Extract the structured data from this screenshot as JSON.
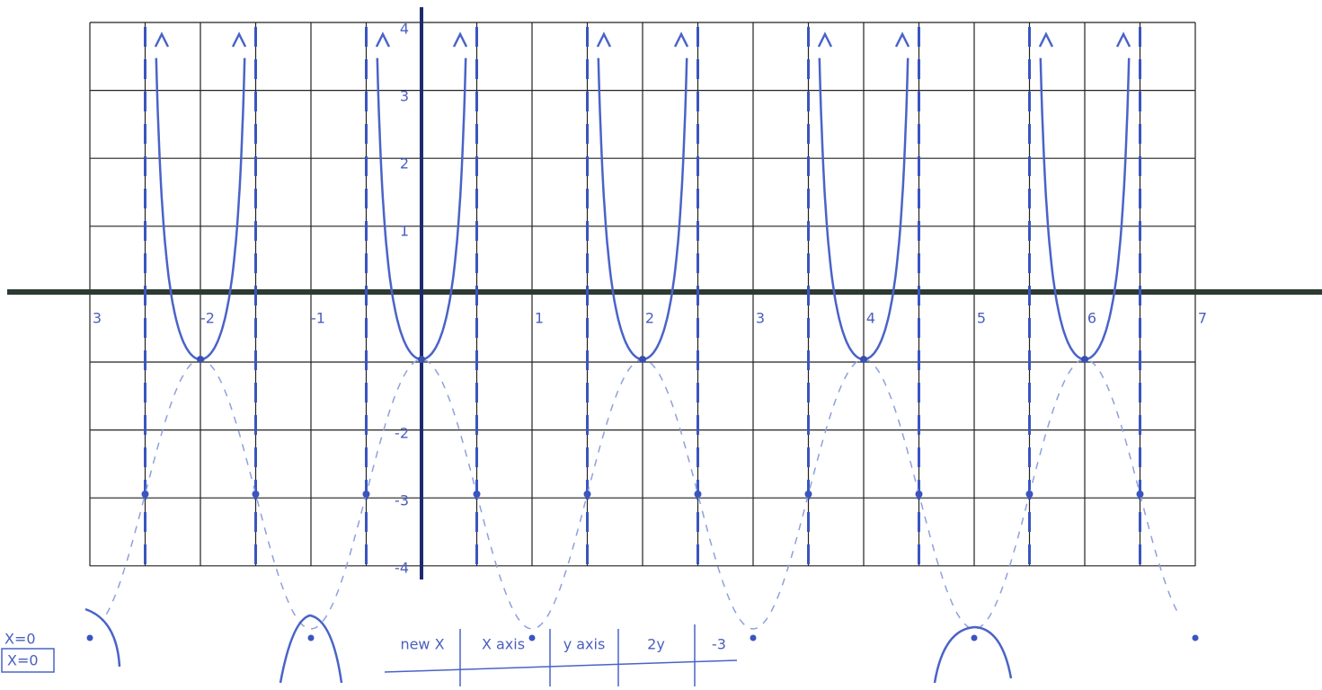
{
  "graph": {
    "x_labels": [
      "3",
      "-2",
      "-1",
      "1",
      "2",
      "3",
      "4",
      "5",
      "6",
      "7"
    ],
    "y_labels": [
      "4",
      "3",
      "2",
      "1",
      "-2",
      "-3",
      "-4"
    ],
    "notes": [
      "X=0",
      "X=0"
    ],
    "table_headers": [
      "new X",
      "X axis",
      "y axis",
      "2y",
      "-3"
    ]
  }
}
